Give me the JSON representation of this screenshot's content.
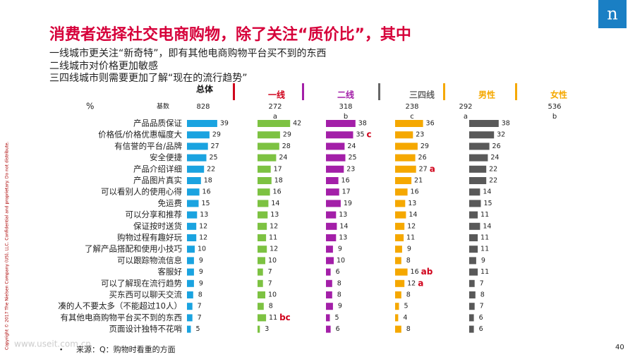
{
  "title": "消费者选择社交电商购物，除了关注“质价比”，其中",
  "subtitle_lines": [
    "一线城市更关注“新奇特”，即有其他电商购物平台买不到的东西",
    "二线城市对价格更加敏感",
    "三四线城市则需要更加了解“现在的流行趋势”"
  ],
  "logo": "n",
  "copyright": "Copyright © 2017 The Nielsen Company (US), LLC. Confidential and proprietary. Do not distribute.",
  "source": "来源：Q：购物时看重的方面",
  "bullet": "•",
  "page_number": "40",
  "watermark": "www.useit.com.cn",
  "chart_data": {
    "type": "bar",
    "orientation": "horizontal",
    "percent_label": "%",
    "base_label": "基数",
    "xlim": [
      0,
      50
    ],
    "categories": [
      "产品品质保证",
      "价格低/价格优惠幅度大",
      "有信誉的平台/品牌",
      "安全便捷",
      "产品介绍详细",
      "产品图片真实",
      "可以看别人的使用心得",
      "免运费",
      "可以分享和推荐",
      "保证按时送货",
      "购物过程有趣好玩",
      "了解产品搭配和使用小技巧",
      "可以跟踪物流信息",
      "客服好",
      "可以了解现在流行趋势",
      "买东西可以聊天交流",
      "凑的人不要太多（不能超过10人）",
      "有其他电商购物平台买不到的东西",
      "页面设计独特不花哨"
    ],
    "series": [
      {
        "name": "总体",
        "base": 828,
        "color": "#1aa3e0",
        "header_color": "#111111",
        "values": [
          39,
          29,
          27,
          25,
          22,
          18,
          16,
          15,
          13,
          12,
          12,
          10,
          9,
          9,
          9,
          8,
          7,
          7,
          5
        ]
      },
      {
        "name": "一线",
        "base": 272,
        "letter": "a",
        "color": "#7dc242",
        "header_color": "#d0021b",
        "values": [
          42,
          29,
          28,
          24,
          17,
          18,
          16,
          14,
          13,
          12,
          11,
          12,
          10,
          7,
          7,
          10,
          8,
          11,
          3
        ],
        "significance": [
          null,
          null,
          null,
          null,
          null,
          null,
          null,
          null,
          null,
          null,
          null,
          null,
          null,
          null,
          null,
          null,
          null,
          "bc",
          null
        ]
      },
      {
        "name": "二线",
        "base": 318,
        "letter": "b",
        "color": "#a31fa8",
        "header_color": "#a31fa8",
        "values": [
          38,
          35,
          24,
          25,
          23,
          16,
          17,
          19,
          13,
          14,
          13,
          9,
          10,
          6,
          8,
          8,
          9,
          5,
          6
        ],
        "significance": [
          null,
          "c",
          null,
          null,
          null,
          null,
          null,
          null,
          null,
          null,
          null,
          null,
          null,
          null,
          null,
          null,
          null,
          null,
          null
        ]
      },
      {
        "name": "三四线",
        "base": 238,
        "letter": "c",
        "color": "#f5a800",
        "header_color": "#666666",
        "values": [
          36,
          23,
          29,
          26,
          27,
          21,
          16,
          13,
          14,
          12,
          11,
          9,
          8,
          16,
          12,
          8,
          5,
          4,
          8
        ],
        "significance": [
          null,
          null,
          null,
          null,
          "a",
          null,
          null,
          null,
          null,
          null,
          null,
          null,
          null,
          "ab",
          "a",
          null,
          null,
          null,
          null
        ]
      },
      {
        "name": "男性",
        "base": 292,
        "letter": "a",
        "color": "#595959",
        "header_color": "#f5a800",
        "values": [
          38,
          32,
          26,
          24,
          22,
          22,
          14,
          15,
          11,
          14,
          11,
          11,
          9,
          11,
          7,
          8,
          7,
          6,
          6
        ]
      },
      {
        "name": "女性",
        "base": 536,
        "letter": "b",
        "header_color": "#f5a800"
      }
    ]
  }
}
